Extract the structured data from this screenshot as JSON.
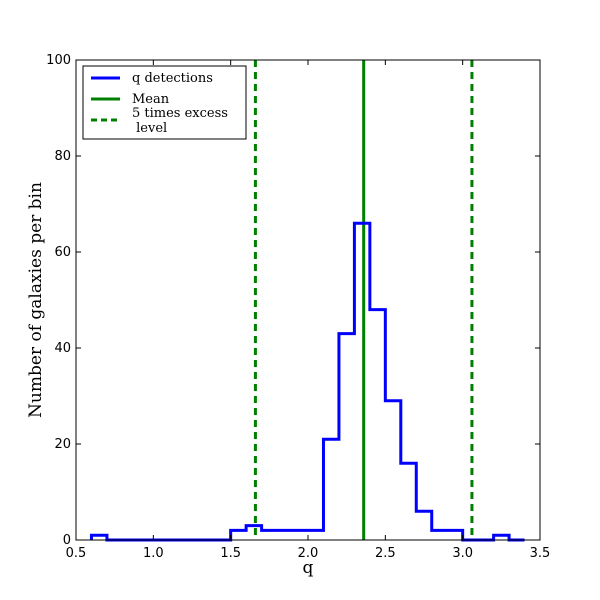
{
  "chart_data": {
    "type": "histogram",
    "xlabel": "q",
    "ylabel": "Number of galaxies per bin",
    "xlim": [
      0.5,
      3.5
    ],
    "ylim": [
      0,
      100
    ],
    "x_ticks": [
      "0.5",
      "1.0",
      "1.5",
      "2.0",
      "2.5",
      "3.0",
      "3.5"
    ],
    "y_ticks": [
      "0",
      "20",
      "40",
      "60",
      "80",
      "100"
    ],
    "grid": false,
    "legend_position": "top-left",
    "legend": [
      {
        "label": "q detections",
        "style": "solid",
        "color": "#0000ff"
      },
      {
        "label": "Mean",
        "style": "solid",
        "color": "#008000"
      },
      {
        "label": "5 times excess\n level",
        "style": "dashed",
        "color": "#008000"
      }
    ],
    "series": [
      {
        "name": "q detections",
        "color": "#0000ff",
        "bin_width": 0.1,
        "bin_starts": [
          0.6,
          0.7,
          0.8,
          0.9,
          1.0,
          1.1,
          1.2,
          1.3,
          1.4,
          1.5,
          1.6,
          1.7,
          1.8,
          1.9,
          2.0,
          2.1,
          2.2,
          2.3,
          2.4,
          2.5,
          2.6,
          2.7,
          2.8,
          2.9,
          3.0,
          3.1,
          3.2,
          3.3
        ],
        "counts": [
          1,
          0,
          0,
          0,
          0,
          0,
          0,
          0,
          0,
          2,
          3,
          2,
          2,
          2,
          2,
          21,
          43,
          66,
          48,
          29,
          16,
          6,
          2,
          2,
          0,
          0,
          1,
          0
        ]
      }
    ],
    "vertical_lines": [
      {
        "name": "Mean",
        "x": 2.36,
        "style": "solid",
        "color": "#008000"
      },
      {
        "name": "5 times excess level",
        "x": 1.66,
        "style": "dashed",
        "color": "#008000"
      },
      {
        "name": "5 times excess level",
        "x": 3.06,
        "style": "dashed",
        "color": "#008000"
      }
    ]
  }
}
